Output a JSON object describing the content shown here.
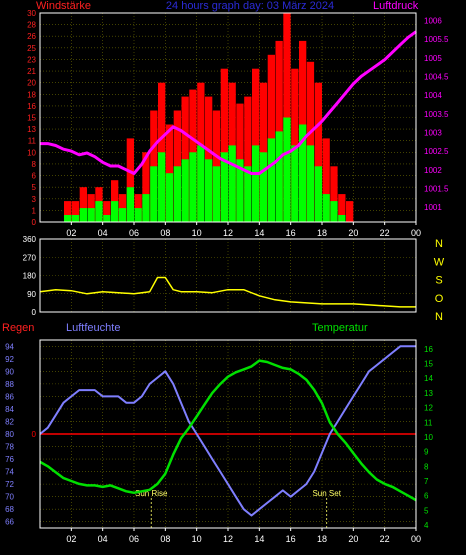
{
  "colors": {
    "background": "#000000",
    "frame": "#ffffff",
    "grid": "#6b6b00",
    "wind_gust": "#ff0000",
    "wind_speed": "#00ff00",
    "pressure": "#ff00ff",
    "direction": "#ffff00",
    "rain": "#ff0000",
    "humidity": "#7f7fff",
    "temperature": "#00e000",
    "tick_label": "#ffffff",
    "title_blue": "#2b2bd6",
    "wind_label": "#ff2020",
    "pressure_label": "#ff00ff",
    "compass_label": "#ffff00",
    "sun_label": "#ffff66"
  },
  "header": {
    "wind_label": "Windstärke",
    "title": "24 hours graph day: 03 März 2024",
    "pressure_label": "Luftdruck"
  },
  "compass_labels": [
    "N",
    "W",
    "S",
    "O",
    "N"
  ],
  "bottom_labels": {
    "rain": "Regen",
    "humidity": "Luftfeuchte",
    "temperature": "Temperatur",
    "sun_rise": "Sun Rise",
    "sun_set": "Sun Set"
  },
  "chart_data": [
    {
      "type": "bar",
      "name": "wind",
      "x_ticks": [
        "02",
        "04",
        "06",
        "08",
        "10",
        "12",
        "14",
        "16",
        "18",
        "20",
        "22",
        "00"
      ],
      "y_left_ticks": [
        "0",
        "1",
        "3",
        "5",
        "6",
        "8",
        "10",
        "11",
        "13",
        "15",
        "16",
        "18",
        "20",
        "21",
        "23",
        "25",
        "26",
        "28",
        "30"
      ],
      "ylim_left": [
        0,
        30
      ],
      "y_right_ticks": [
        "1001",
        "1001.5",
        "1002",
        "1002.5",
        "1003",
        "1003.5",
        "1004",
        "1004.5",
        "1005",
        "1005.5",
        "1006"
      ],
      "ylim_right": [
        1000.6,
        1006.2
      ],
      "x_hours": [
        0.5,
        1,
        1.5,
        2,
        2.5,
        3,
        3.5,
        4,
        4.5,
        5,
        5.5,
        6,
        6.5,
        7,
        7.5,
        8,
        8.5,
        9,
        9.5,
        10,
        10.5,
        11,
        11.5,
        12,
        12.5,
        13,
        13.5,
        14,
        14.5,
        15,
        15.5,
        16,
        16.5,
        17,
        17.5,
        18,
        18.5,
        19,
        19.5,
        20
      ],
      "gust_values": [
        0,
        0,
        0,
        3,
        3,
        5,
        4,
        5,
        3,
        6,
        4,
        12,
        4,
        10,
        16,
        20,
        14,
        16,
        18,
        19,
        20,
        18,
        16,
        22,
        20,
        17,
        18,
        22,
        20,
        24,
        26,
        30,
        22,
        26,
        23,
        20,
        12,
        8,
        4,
        3
      ],
      "speed_values": [
        0,
        0,
        0,
        1,
        1,
        2,
        2,
        3,
        1,
        3,
        2,
        5,
        2,
        4,
        8,
        10,
        7,
        8,
        9,
        10,
        11,
        9,
        8,
        10,
        11,
        9,
        8,
        11,
        10,
        12,
        13,
        15,
        11,
        14,
        11,
        8,
        4,
        3,
        1,
        0
      ],
      "pressure": {
        "x": [
          0,
          0.5,
          1,
          1.5,
          2,
          2.5,
          3,
          3.5,
          4,
          4.5,
          5,
          5.5,
          6,
          6.5,
          7,
          7.5,
          8,
          8.5,
          9,
          9.5,
          10,
          10.5,
          11,
          11.5,
          12,
          12.5,
          13,
          13.5,
          14,
          14.5,
          15,
          15.5,
          16,
          16.5,
          17,
          17.5,
          18,
          18.5,
          19,
          19.5,
          20,
          20.5,
          21,
          21.5,
          22,
          22.5,
          23,
          23.5,
          24
        ],
        "values": [
          1002.7,
          1002.7,
          1002.65,
          1002.55,
          1002.5,
          1002.4,
          1002.45,
          1002.35,
          1002.2,
          1002.1,
          1002.1,
          1002.0,
          1001.9,
          1002.15,
          1002.5,
          1002.75,
          1002.95,
          1003.15,
          1003.05,
          1002.9,
          1002.75,
          1002.6,
          1002.45,
          1002.3,
          1002.2,
          1002.1,
          1002.0,
          1001.9,
          1001.9,
          1002.05,
          1002.2,
          1002.4,
          1002.5,
          1002.65,
          1002.9,
          1003.1,
          1003.3,
          1003.55,
          1003.8,
          1004.05,
          1004.3,
          1004.5,
          1004.65,
          1004.8,
          1004.95,
          1005.15,
          1005.35,
          1005.55,
          1005.7
        ]
      }
    },
    {
      "type": "line",
      "name": "wind_direction",
      "y_ticks": [
        "0",
        "90",
        "180",
        "270",
        "360"
      ],
      "ylim": [
        0,
        360
      ],
      "x": [
        0,
        1,
        2,
        3,
        4,
        5,
        6,
        7,
        7.5,
        8,
        8.5,
        9,
        10,
        11,
        12,
        13,
        14,
        15,
        16,
        17,
        18,
        19,
        20,
        21,
        22,
        23,
        24
      ],
      "values": [
        100,
        110,
        105,
        90,
        100,
        95,
        90,
        100,
        170,
        170,
        110,
        100,
        100,
        95,
        110,
        110,
        80,
        60,
        50,
        45,
        40,
        40,
        40,
        35,
        30,
        25,
        25
      ]
    },
    {
      "type": "line",
      "name": "humidity_temperature",
      "x_ticks": [
        "02",
        "04",
        "06",
        "08",
        "10",
        "12",
        "14",
        "16",
        "18",
        "20",
        "22",
        "00"
      ],
      "y_left_ticks": [
        "66",
        "68",
        "70",
        "72",
        "74",
        "76",
        "78",
        "80",
        "82",
        "84",
        "86",
        "88",
        "90",
        "92",
        "94"
      ],
      "ylim_left": [
        65,
        95
      ],
      "y_right_ticks": [
        "4",
        "5",
        "6",
        "7",
        "8",
        "9",
        "10",
        "11",
        "12",
        "13",
        "14",
        "15",
        "16"
      ],
      "ylim_right": [
        3.8,
        16.6
      ],
      "rain_ticks": [
        "0"
      ],
      "rain_value": 0,
      "sun_rise_hour": 7.1,
      "sun_set_hour": 18.3,
      "humidity": {
        "x": [
          0,
          0.5,
          1,
          1.5,
          2,
          2.5,
          3,
          3.5,
          4,
          4.5,
          5,
          5.5,
          6,
          6.5,
          7,
          7.5,
          8,
          8.5,
          9,
          9.5,
          10,
          10.5,
          11,
          11.5,
          12,
          12.5,
          13,
          13.5,
          14,
          14.5,
          15,
          15.5,
          16,
          16.5,
          17,
          17.5,
          18,
          18.5,
          19,
          19.5,
          20,
          20.5,
          21,
          21.5,
          22,
          22.5,
          23,
          23.5,
          24
        ],
        "values": [
          80,
          81,
          83,
          85,
          86,
          87,
          87,
          87,
          86,
          86,
          86,
          85,
          85,
          86,
          88,
          89,
          90,
          88,
          85,
          82,
          80,
          78,
          76,
          74,
          72,
          70,
          68,
          67,
          68,
          69,
          70,
          71,
          70,
          71,
          72,
          74,
          77,
          80,
          82,
          84,
          86,
          88,
          90,
          91,
          92,
          93,
          94,
          94,
          94
        ]
      },
      "temperature": {
        "x": [
          0,
          0.5,
          1,
          1.5,
          2,
          2.5,
          3,
          3.5,
          4,
          4.5,
          5,
          5.5,
          6,
          6.5,
          7,
          7.5,
          8,
          8.5,
          9,
          9.5,
          10,
          10.5,
          11,
          11.5,
          12,
          12.5,
          13,
          13.5,
          14,
          14.5,
          15,
          15.5,
          16,
          16.5,
          17,
          17.5,
          18,
          18.5,
          19,
          19.5,
          20,
          20.5,
          21,
          21.5,
          22,
          22.5,
          23,
          23.5,
          24
        ],
        "values": [
          8.3,
          8.0,
          7.6,
          7.2,
          7.0,
          6.8,
          6.7,
          6.7,
          6.6,
          6.7,
          6.5,
          6.3,
          6.2,
          6.3,
          6.4,
          6.8,
          7.5,
          8.8,
          9.9,
          10.6,
          11.4,
          12.2,
          13.0,
          13.6,
          14.1,
          14.4,
          14.6,
          14.8,
          15.2,
          15.1,
          14.9,
          14.7,
          14.6,
          14.3,
          13.9,
          13.2,
          12.3,
          11.0,
          10.2,
          9.6,
          8.9,
          8.2,
          7.6,
          7.1,
          6.8,
          6.6,
          6.3,
          6.0,
          5.7
        ]
      }
    }
  ]
}
